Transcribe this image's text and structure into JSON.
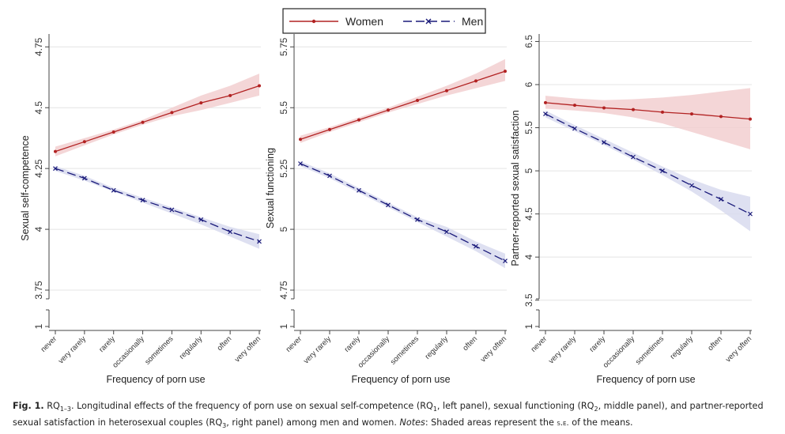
{
  "legend": {
    "entries": [
      {
        "label": "Women",
        "color": "#b22222",
        "marker": "dot",
        "dash": "solid"
      },
      {
        "label": "Men",
        "color": "#1a1a7a",
        "marker": "x",
        "dash": "dashed"
      }
    ],
    "placement": "top-center"
  },
  "colors": {
    "women": "#b22222",
    "women_band": "#f2cfd0",
    "men": "#1a1a7a",
    "men_band": "#d8dbef",
    "grid": "#e4e4e4"
  },
  "chart_data": [
    {
      "type": "line",
      "panel": "left",
      "xlabel": "Frequency of porn use",
      "ylabel": "Sexual self-competence",
      "categories": [
        "never",
        "very rarely",
        "rarely",
        "occasionally",
        "sometimes",
        "regularly",
        "often",
        "very often"
      ],
      "y_ticks": [
        1,
        3.75,
        4,
        4.25,
        4.5,
        4.75
      ],
      "ylim": [
        3.62,
        4.79
      ],
      "y_break": true,
      "series": [
        {
          "name": "Women",
          "values": [
            4.32,
            4.36,
            4.4,
            4.44,
            4.48,
            4.52,
            4.55,
            4.59
          ],
          "se_lower": [
            4.3,
            4.345,
            4.39,
            4.43,
            4.465,
            4.49,
            4.52,
            4.55
          ],
          "se_upper": [
            4.34,
            4.375,
            4.41,
            4.45,
            4.5,
            4.55,
            4.59,
            4.64
          ]
        },
        {
          "name": "Men",
          "values": [
            4.25,
            4.21,
            4.16,
            4.12,
            4.08,
            4.04,
            3.99,
            3.95
          ],
          "se_lower": [
            4.24,
            4.2,
            4.155,
            4.11,
            4.065,
            4.02,
            3.97,
            3.92
          ],
          "se_upper": [
            4.26,
            4.22,
            4.17,
            4.13,
            4.09,
            4.05,
            4.01,
            3.98
          ]
        }
      ]
    },
    {
      "type": "line",
      "panel": "middle",
      "xlabel": "Frequency of porn use",
      "ylabel": "Sexual functioning",
      "categories": [
        "never",
        "very rarely",
        "rarely",
        "occasionally",
        "sometimes",
        "regularly",
        "often",
        "very often"
      ],
      "y_ticks": [
        1,
        4.75,
        5,
        5.25,
        5.5,
        5.75
      ],
      "ylim": [
        4.62,
        5.79
      ],
      "y_break": true,
      "series": [
        {
          "name": "Women",
          "values": [
            5.37,
            5.41,
            5.45,
            5.49,
            5.53,
            5.57,
            5.61,
            5.65
          ],
          "se_lower": [
            5.355,
            5.4,
            5.44,
            5.48,
            5.515,
            5.55,
            5.58,
            5.61
          ],
          "se_upper": [
            5.385,
            5.42,
            5.46,
            5.5,
            5.545,
            5.59,
            5.64,
            5.7
          ]
        },
        {
          "name": "Men",
          "values": [
            5.27,
            5.22,
            5.16,
            5.1,
            5.04,
            4.99,
            4.93,
            4.87
          ],
          "se_lower": [
            5.26,
            5.21,
            5.15,
            5.09,
            5.03,
            4.97,
            4.91,
            4.84
          ],
          "se_upper": [
            5.28,
            5.23,
            5.17,
            5.11,
            5.05,
            5.01,
            4.95,
            4.9
          ]
        }
      ]
    },
    {
      "type": "line",
      "panel": "right",
      "xlabel": "Frequency of porn use",
      "ylabel": "Partner-reported sexual satisfaction",
      "categories": [
        "never",
        "very rarely",
        "rarely",
        "occasionally",
        "sometimes",
        "regularly",
        "often",
        "very often"
      ],
      "y_ticks": [
        1,
        3.5,
        4,
        4.5,
        5,
        5.5,
        6,
        6.5
      ],
      "ylim": [
        3.25,
        6.55
      ],
      "y_break": true,
      "series": [
        {
          "name": "Women",
          "values": [
            5.79,
            5.76,
            5.73,
            5.71,
            5.68,
            5.66,
            5.63,
            5.6
          ],
          "se_lower": [
            5.72,
            5.7,
            5.67,
            5.62,
            5.55,
            5.45,
            5.35,
            5.25
          ],
          "se_upper": [
            5.87,
            5.84,
            5.82,
            5.83,
            5.85,
            5.88,
            5.92,
            5.96
          ]
        },
        {
          "name": "Men",
          "values": [
            5.66,
            5.49,
            5.33,
            5.16,
            5.0,
            4.83,
            4.67,
            4.5
          ],
          "se_lower": [
            5.62,
            5.46,
            5.3,
            5.13,
            4.95,
            4.76,
            4.54,
            4.3
          ],
          "se_upper": [
            5.7,
            5.53,
            5.37,
            5.21,
            5.05,
            4.9,
            4.78,
            4.7
          ]
        }
      ]
    }
  ],
  "caption": {
    "fig_label": "Fig. 1.",
    "rq_prefix": "RQ",
    "rq_range": "1–3",
    "part1": ". Longitudinal effects of the frequency of porn use on sexual self-competence (RQ",
    "sub1": "1",
    "part2": ", left panel), sexual functioning (RQ",
    "sub2": "2",
    "part3": ", middle panel), and partner-reported sexual satisfaction in heterosexual couples (RQ",
    "sub3": "3",
    "part4": ", right panel) among men and women.",
    "notes_label": "Notes",
    "notes_text": ": Shaded areas represent the",
    "se_text": "s.e.",
    "end_text": "of the means."
  }
}
